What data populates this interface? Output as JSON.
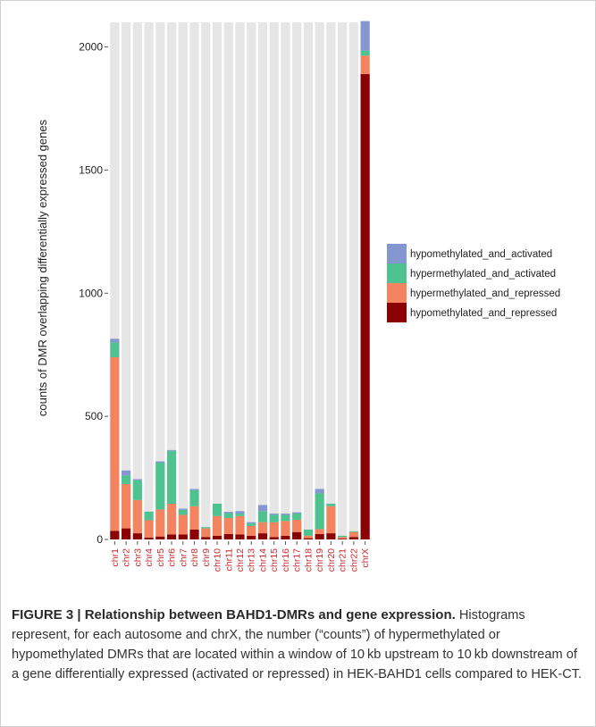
{
  "chart_data": {
    "type": "bar",
    "stacked": true,
    "ylabel": "counts of DMR overlapping differentially expressed genes",
    "xlabel": "",
    "ylim": [
      0,
      2100
    ],
    "yticks": [
      0,
      500,
      1000,
      1500,
      2000
    ],
    "ytick_labels": [
      "0",
      "500",
      "1000",
      "1500",
      "2000"
    ],
    "categories": [
      "chr1",
      "chr2",
      "chr3",
      "chr4",
      "chr5",
      "chr6",
      "chr7",
      "chr8",
      "chr9",
      "chr10",
      "chr11",
      "chr12",
      "chr13",
      "chr14",
      "chr15",
      "chr16",
      "chr17",
      "chr18",
      "chr19",
      "chr20",
      "chr21",
      "chr22",
      "chrX"
    ],
    "legend_position": "right",
    "grid": false,
    "series": [
      {
        "name": "hypomethylated_and_repressed",
        "color": "#8b0000",
        "values": [
          35,
          45,
          25,
          8,
          12,
          20,
          20,
          40,
          10,
          15,
          22,
          20,
          15,
          25,
          10,
          15,
          30,
          5,
          22,
          25,
          3,
          10,
          1890
        ]
      },
      {
        "name": "hypermethylated_and_repressed",
        "color": "#f4845f",
        "values": [
          705,
          180,
          135,
          70,
          110,
          125,
          80,
          95,
          35,
          80,
          65,
          75,
          40,
          45,
          60,
          60,
          50,
          10,
          20,
          110,
          7,
          20,
          75
        ]
      },
      {
        "name": "hypermethylated_and_activated",
        "color": "#4ec38f",
        "values": [
          60,
          35,
          80,
          35,
          190,
          215,
          20,
          65,
          5,
          50,
          20,
          10,
          10,
          45,
          30,
          25,
          25,
          25,
          145,
          10,
          5,
          3,
          20
        ]
      },
      {
        "name": "hypomethylated_and_activated",
        "color": "#8497d0",
        "values": [
          15,
          20,
          5,
          0,
          5,
          3,
          5,
          5,
          0,
          0,
          5,
          10,
          5,
          25,
          5,
          5,
          5,
          0,
          18,
          0,
          0,
          0,
          120
        ]
      }
    ]
  },
  "caption": {
    "title": "FIGURE 3 | Relationship between BAHD1-DMRs and gene expression.",
    "body": "Histograms represent, for each autosome and chrX, the number (“counts”) of hypermethylated or hypomethylated DMRs that are located within a window of 10 kb upstream to 10 kb downstream of a gene differentially expressed (activated or repressed) in HEK-BAHD1 cells compared to HEK-CT."
  }
}
